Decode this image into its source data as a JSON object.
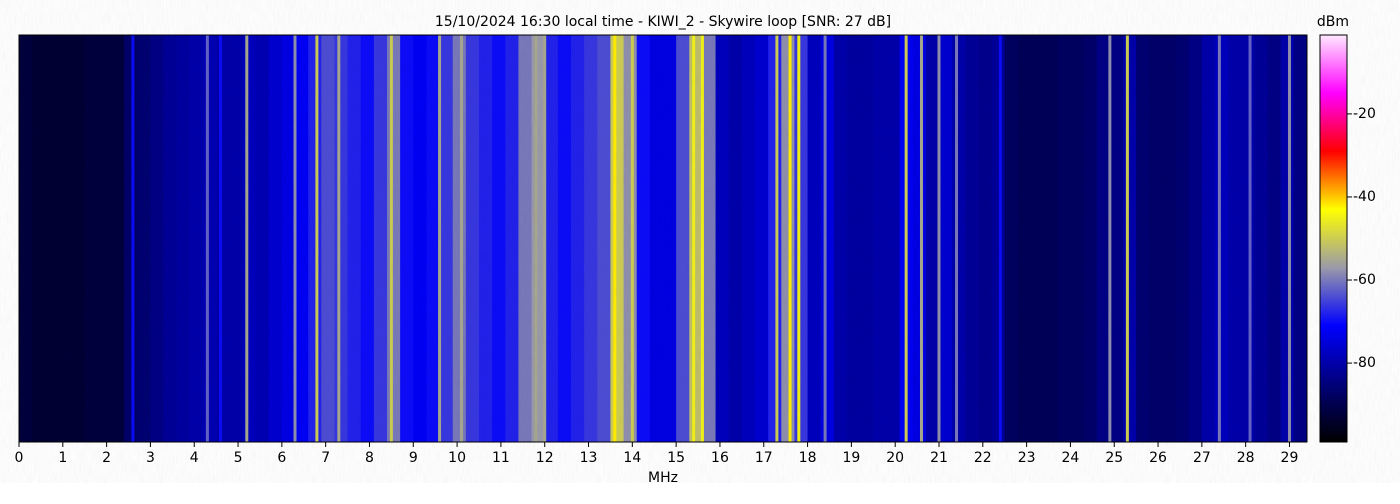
{
  "chart_data": {
    "type": "heatmap",
    "title": "15/10/2024 16:30 local time - KIWI_2 - Skywire loop [SNR: 27 dB]",
    "x_label": "MHz",
    "colorbar_label": "dBm",
    "xlim": [
      0,
      29.4
    ],
    "xticks": [
      0,
      1,
      2,
      3,
      4,
      5,
      6,
      7,
      8,
      9,
      10,
      11,
      12,
      13,
      14,
      15,
      16,
      17,
      18,
      19,
      20,
      21,
      22,
      23,
      24,
      25,
      26,
      27,
      28,
      29
    ],
    "clim": [
      -99,
      -1
    ],
    "cticks": [
      -20,
      -40,
      -60,
      -80
    ],
    "colorscale": [
      "#000000",
      "#00007a",
      "#0000ff",
      "#9a9aa8",
      "#ffff00",
      "#ff0000",
      "#ff00ff",
      "#ffe8ff"
    ],
    "x": [
      0.15,
      0.45,
      0.75,
      1.05,
      1.35,
      1.65,
      1.95,
      2.25,
      2.55,
      2.85,
      3.15,
      3.45,
      3.75,
      4.05,
      4.35,
      4.65,
      4.95,
      5.25,
      5.55,
      5.85,
      6.15,
      6.45,
      6.75,
      7.05,
      7.35,
      7.65,
      7.95,
      8.25,
      8.55,
      8.85,
      9.15,
      9.45,
      9.75,
      10.05,
      10.35,
      10.65,
      10.95,
      11.25,
      11.55,
      11.85,
      12.15,
      12.45,
      12.75,
      13.05,
      13.35,
      13.65,
      13.95,
      14.25,
      14.55,
      14.85,
      15.15,
      15.45,
      15.75,
      16.05,
      16.35,
      16.65,
      16.95,
      17.25,
      17.55,
      17.85,
      18.15,
      18.45,
      18.75,
      19.05,
      19.35,
      19.65,
      19.95,
      20.25,
      20.55,
      20.85,
      21.15,
      21.45,
      21.75,
      22.05,
      22.35,
      22.65,
      22.95,
      23.25,
      23.55,
      23.85,
      24.15,
      24.45,
      24.75,
      25.05,
      25.35,
      25.65,
      25.95,
      26.25,
      26.55,
      26.85,
      27.15,
      27.45,
      27.75,
      28.05,
      28.35,
      28.65,
      28.95,
      29.25
    ],
    "values": [
      -92,
      -93,
      -93,
      -93,
      -93,
      -92,
      -92,
      -92,
      -87,
      -86,
      -84,
      -82,
      -81,
      -80,
      -79,
      -80,
      -80,
      -78,
      -79,
      -76,
      -74,
      -72,
      -68,
      -64,
      -66,
      -68,
      -70,
      -66,
      -60,
      -70,
      -72,
      -70,
      -66,
      -60,
      -66,
      -68,
      -70,
      -68,
      -60,
      -57,
      -68,
      -70,
      -68,
      -66,
      -64,
      -50,
      -58,
      -70,
      -74,
      -74,
      -64,
      -52,
      -60,
      -78,
      -80,
      -78,
      -76,
      -68,
      -58,
      -66,
      -78,
      -74,
      -80,
      -81,
      -81,
      -80,
      -80,
      -72,
      -74,
      -80,
      -76,
      -80,
      -82,
      -83,
      -82,
      -88,
      -89,
      -89,
      -89,
      -88,
      -88,
      -87,
      -84,
      -84,
      -80,
      -86,
      -87,
      -87,
      -86,
      -84,
      -80,
      -78,
      -80,
      -80,
      -82,
      -84,
      -80,
      -84
    ],
    "peaks": {
      "x": [
        2.6,
        4.3,
        4.6,
        5.2,
        6.3,
        6.8,
        7.3,
        8.5,
        9.6,
        10.1,
        11.8,
        12.0,
        13.6,
        14.0,
        15.4,
        15.6,
        17.3,
        17.6,
        17.8,
        18.4,
        20.25,
        20.6,
        21.0,
        21.4,
        22.4,
        24.9,
        25.3,
        27.4,
        28.1,
        29.0
      ],
      "values": [
        -70,
        -62,
        -70,
        -55,
        -58,
        -50,
        -55,
        -50,
        -55,
        -55,
        -55,
        -55,
        -42,
        -50,
        -45,
        -45,
        -50,
        -42,
        -45,
        -60,
        -50,
        -55,
        -58,
        -60,
        -70,
        -58,
        -50,
        -60,
        -62,
        -58
      ]
    }
  }
}
